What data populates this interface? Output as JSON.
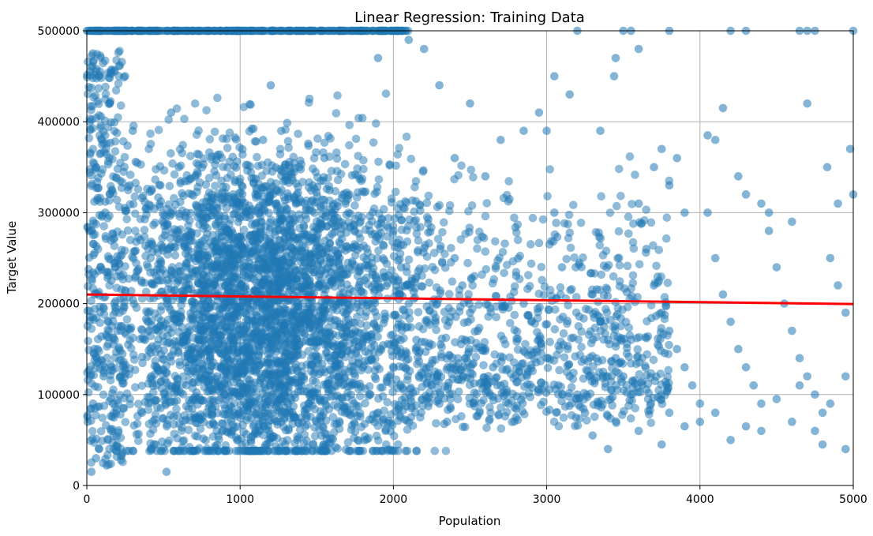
{
  "chart_data": {
    "type": "scatter",
    "title": "Linear Regression: Training Data",
    "xlabel": "Population",
    "ylabel": "Target Value",
    "xlim": [
      0,
      5000
    ],
    "ylim": [
      0,
      500000
    ],
    "x_ticks": [
      0,
      1000,
      2000,
      3000,
      4000,
      5000
    ],
    "x_tick_labels": [
      "0",
      "1000",
      "2000",
      "3000",
      "4000",
      "5000"
    ],
    "y_ticks": [
      0,
      100000,
      200000,
      300000,
      400000,
      500000
    ],
    "y_tick_labels": [
      "0",
      "100000",
      "200000",
      "300000",
      "400000",
      "500000"
    ],
    "grid": true,
    "colors": {
      "points": "#1f77b4",
      "fit_line": "#ff0000",
      "grid": "#b0b0b0"
    },
    "series": [
      {
        "kind": "scatter",
        "points": [
          [
            40,
            475000
          ],
          [
            80,
            450000
          ],
          [
            60,
            350000
          ],
          [
            20,
            400000
          ],
          [
            100,
            375000
          ],
          [
            150,
            420000
          ],
          [
            120,
            300000
          ],
          [
            30,
            280000
          ],
          [
            90,
            240000
          ],
          [
            50,
            210000
          ],
          [
            140,
            180000
          ],
          [
            70,
            150000
          ],
          [
            110,
            120000
          ],
          [
            40,
            90000
          ],
          [
            160,
            60000
          ],
          [
            80,
            40000
          ],
          [
            130,
            22000
          ],
          [
            60,
            30000
          ],
          [
            30,
            15000
          ],
          [
            250,
            450000
          ],
          [
            300,
            390000
          ],
          [
            280,
            330000
          ],
          [
            350,
            270000
          ],
          [
            320,
            230000
          ],
          [
            400,
            190000
          ],
          [
            380,
            160000
          ],
          [
            420,
            120000
          ],
          [
            360,
            80000
          ],
          [
            450,
            45000
          ],
          [
            520,
            15000
          ],
          [
            480,
            330000
          ],
          [
            550,
            410000
          ],
          [
            600,
            350000
          ],
          [
            650,
            300000
          ],
          [
            700,
            250000
          ],
          [
            750,
            200000
          ],
          [
            800,
            150000
          ],
          [
            850,
            120000
          ],
          [
            900,
            100000
          ],
          [
            950,
            60000
          ],
          [
            1000,
            80000
          ],
          [
            1050,
            260000
          ],
          [
            1100,
            320000
          ],
          [
            1150,
            380000
          ],
          [
            1200,
            440000
          ],
          [
            1250,
            210000
          ],
          [
            1300,
            170000
          ],
          [
            1350,
            140000
          ],
          [
            1400,
            110000
          ],
          [
            1450,
            90000
          ],
          [
            1500,
            70000
          ],
          [
            1550,
            360000
          ],
          [
            1600,
            300000
          ],
          [
            1650,
            250000
          ],
          [
            1700,
            200000
          ],
          [
            1750,
            170000
          ],
          [
            1800,
            130000
          ],
          [
            1850,
            100000
          ],
          [
            1900,
            80000
          ],
          [
            1950,
            60000
          ],
          [
            2000,
            280000
          ],
          [
            2050,
            240000
          ],
          [
            2100,
            200000
          ],
          [
            2150,
            160000
          ],
          [
            2200,
            130000
          ],
          [
            2250,
            110000
          ],
          [
            2300,
            90000
          ],
          [
            2350,
            70000
          ],
          [
            2400,
            250000
          ],
          [
            2450,
            220000
          ],
          [
            2500,
            190000
          ],
          [
            2550,
            170000
          ],
          [
            2600,
            150000
          ],
          [
            2650,
            130000
          ],
          [
            2700,
            110000
          ],
          [
            2750,
            90000
          ],
          [
            2800,
            75000
          ],
          [
            2850,
            200000
          ],
          [
            2900,
            180000
          ],
          [
            2950,
            160000
          ],
          [
            3000,
            140000
          ],
          [
            3050,
            300000
          ],
          [
            3100,
            240000
          ],
          [
            3150,
            120000
          ],
          [
            3200,
            100000
          ],
          [
            3250,
            80000
          ],
          [
            3300,
            210000
          ],
          [
            3350,
            180000
          ],
          [
            3400,
            160000
          ],
          [
            3450,
            140000
          ],
          [
            3500,
            120000
          ],
          [
            3550,
            100000
          ],
          [
            3600,
            310000
          ],
          [
            3650,
            260000
          ],
          [
            3700,
            220000
          ],
          [
            3750,
            190000
          ],
          [
            3800,
            170000
          ],
          [
            3850,
            150000
          ],
          [
            3900,
            130000
          ],
          [
            3950,
            110000
          ],
          [
            4000,
            90000
          ],
          [
            4050,
            300000
          ],
          [
            4100,
            250000
          ],
          [
            4150,
            210000
          ],
          [
            4200,
            180000
          ],
          [
            4250,
            150000
          ],
          [
            4300,
            130000
          ],
          [
            4350,
            110000
          ],
          [
            4400,
            90000
          ],
          [
            4450,
            280000
          ],
          [
            4500,
            240000
          ],
          [
            4550,
            200000
          ],
          [
            4600,
            170000
          ],
          [
            4650,
            140000
          ],
          [
            4700,
            120000
          ],
          [
            4750,
            100000
          ],
          [
            4800,
            80000
          ],
          [
            4850,
            250000
          ],
          [
            4900,
            220000
          ],
          [
            4950,
            190000
          ],
          [
            3050,
            450000
          ],
          [
            3150,
            430000
          ],
          [
            3200,
            500000
          ],
          [
            3350,
            390000
          ],
          [
            3440,
            450000
          ],
          [
            3450,
            470000
          ],
          [
            3550,
            500000
          ],
          [
            3600,
            480000
          ],
          [
            3700,
            350000
          ],
          [
            3750,
            370000
          ],
          [
            3800,
            330000
          ],
          [
            3850,
            360000
          ],
          [
            3900,
            300000
          ],
          [
            4050,
            385000
          ],
          [
            4100,
            380000
          ],
          [
            4150,
            415000
          ],
          [
            4250,
            340000
          ],
          [
            4300,
            320000
          ],
          [
            4400,
            310000
          ],
          [
            4450,
            300000
          ],
          [
            4600,
            290000
          ],
          [
            4700,
            420000
          ],
          [
            4750,
            500000
          ],
          [
            4830,
            350000
          ],
          [
            4980,
            370000
          ],
          [
            5000,
            320000
          ],
          [
            4900,
            310000
          ],
          [
            3000,
            390000
          ],
          [
            2850,
            390000
          ],
          [
            2950,
            410000
          ],
          [
            2700,
            380000
          ],
          [
            2600,
            340000
          ],
          [
            2500,
            420000
          ],
          [
            2400,
            360000
          ],
          [
            2300,
            440000
          ],
          [
            2200,
            480000
          ],
          [
            2100,
            490000
          ],
          [
            1900,
            470000
          ],
          [
            1800,
            500000
          ],
          [
            3400,
            40000
          ],
          [
            3300,
            55000
          ],
          [
            3600,
            60000
          ],
          [
            4000,
            70000
          ],
          [
            4200,
            50000
          ],
          [
            4400,
            60000
          ],
          [
            4600,
            70000
          ],
          [
            4800,
            45000
          ],
          [
            4950,
            40000
          ],
          [
            3750,
            45000
          ],
          [
            3800,
            80000
          ],
          [
            3900,
            65000
          ],
          [
            4100,
            80000
          ],
          [
            4300,
            65000
          ],
          [
            4500,
            95000
          ],
          [
            4650,
            110000
          ],
          [
            4750,
            60000
          ],
          [
            4850,
            90000
          ],
          [
            4950,
            120000
          ],
          [
            3500,
            500000
          ],
          [
            3800,
            500000
          ],
          [
            4200,
            500000
          ],
          [
            4300,
            500000
          ],
          [
            4650,
            500000
          ],
          [
            4700,
            500000
          ],
          [
            5000,
            500000
          ]
        ]
      },
      {
        "kind": "line",
        "points": [
          [
            0,
            210000
          ],
          [
            5000,
            199500
          ]
        ]
      }
    ]
  }
}
